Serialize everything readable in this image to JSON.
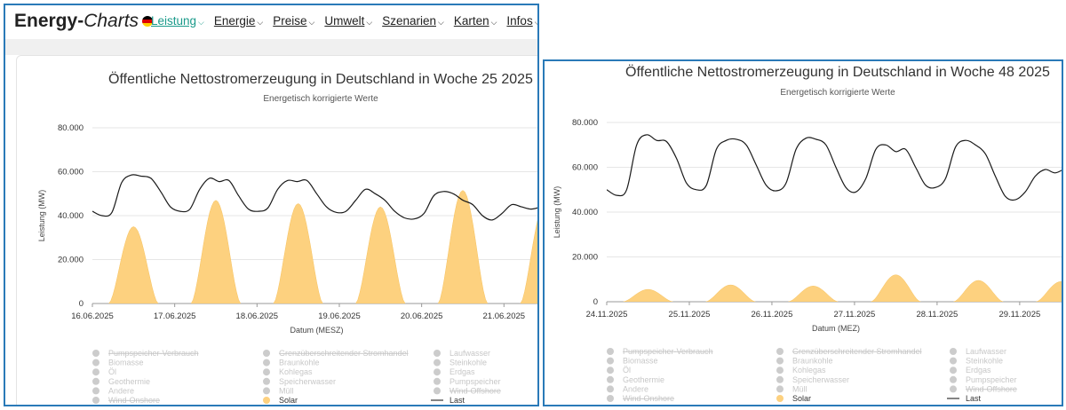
{
  "navbar": {
    "logo_main": "Energy-",
    "logo_italic": "Charts",
    "items": [
      "Leistung",
      "Energie",
      "Preise",
      "Umwelt",
      "Szenarien",
      "Karten",
      "Infos"
    ]
  },
  "legend": [
    {
      "label": "Pumpspeicher-Verbrauch",
      "struck": true,
      "active": false
    },
    {
      "label": "Grenzüberschreitender Stromhandel",
      "struck": true,
      "active": false
    },
    {
      "label": "Laufwasser",
      "struck": false,
      "active": false
    },
    {
      "label": "Biomasse",
      "struck": false,
      "active": false
    },
    {
      "label": "Braunkohle",
      "struck": false,
      "active": false
    },
    {
      "label": "Steinkohle",
      "struck": false,
      "active": false
    },
    {
      "label": "Öl",
      "struck": false,
      "active": false
    },
    {
      "label": "Kohlegas",
      "struck": false,
      "active": false
    },
    {
      "label": "Erdgas",
      "struck": false,
      "active": false
    },
    {
      "label": "Geothermie",
      "struck": false,
      "active": false
    },
    {
      "label": "Speicherwasser",
      "struck": false,
      "active": false
    },
    {
      "label": "Pumpspeicher",
      "struck": false,
      "active": false
    },
    {
      "label": "Andere",
      "struck": false,
      "active": false
    },
    {
      "label": "Müll",
      "struck": false,
      "active": false
    },
    {
      "label": "Wind-Offshore",
      "struck": true,
      "active": false
    },
    {
      "label": "Wind-Onshore",
      "struck": true,
      "active": false
    },
    {
      "label": "Solar",
      "struck": false,
      "active": true,
      "marker": "dot"
    },
    {
      "label": "Last",
      "struck": false,
      "active": true,
      "marker": "line"
    }
  ],
  "colors": {
    "solar": "#fdd17f",
    "load": "#1a1a1a",
    "inactive": "#cccccc",
    "accent": "#1a9a8a"
  },
  "chart_data": [
    {
      "type": "area",
      "title": "Öffentliche Nettostromerzeugung in Deutschland in Woche 25 2025",
      "subtitle": "Energetisch korrigierte Werte",
      "xlabel": "Datum (MESZ)",
      "ylabel": "Leistung (MW)",
      "ylim": [
        0,
        80000
      ],
      "yticks": [
        "0",
        "20.000",
        "40.000",
        "60.000",
        "80.000"
      ],
      "xticks": [
        "16.06.2025",
        "17.06.2025",
        "18.06.2025",
        "19.06.2025",
        "20.06.2025",
        "21.06.2025"
      ],
      "days_visible": 5.45,
      "series": [
        {
          "name": "Last",
          "type": "line",
          "values": [
            42000,
            40000,
            41500,
            55000,
            58500,
            58000,
            57000,
            51000,
            44000,
            42000,
            43000,
            52000,
            57000,
            55500,
            56000,
            49000,
            43000,
            42000,
            43500,
            52000,
            56000,
            55500,
            56000,
            50000,
            44000,
            41500,
            42000,
            47000,
            52000,
            50000,
            47000,
            42000,
            39000,
            38500,
            41000,
            49000,
            51000,
            50000,
            47000,
            45000,
            40000,
            38000,
            41000,
            45000,
            44000,
            43000,
            44000
          ]
        },
        {
          "name": "Solar",
          "type": "area",
          "days": [
            {
              "peak": 35000
            },
            {
              "peak": 47000
            },
            {
              "peak": 45500
            },
            {
              "peak": 44000
            },
            {
              "peak": 51500
            },
            {
              "peak": 46000
            }
          ]
        }
      ]
    },
    {
      "type": "area",
      "title": "Öffentliche Nettostromerzeugung in Deutschland in Woche 48 2025",
      "subtitle": "Energetisch korrigierte Werte",
      "xlabel": "Datum (MEZ)",
      "ylabel": "Leistung (MW)",
      "ylim": [
        0,
        80000
      ],
      "yticks": [
        "0",
        "20.000",
        "40.000",
        "60.000",
        "80.000"
      ],
      "xticks": [
        "24.11.2025",
        "25.11.2025",
        "26.11.2025",
        "27.11.2025",
        "28.11.2025",
        "29.11.2025"
      ],
      "days_visible": 5.55,
      "series": [
        {
          "name": "Last",
          "type": "line",
          "values": [
            50000,
            47500,
            50000,
            70000,
            74500,
            72000,
            71500,
            64000,
            53000,
            50000,
            52000,
            68000,
            72000,
            72500,
            70000,
            61000,
            52000,
            49500,
            53000,
            68000,
            73000,
            72500,
            70000,
            60000,
            51000,
            49000,
            55000,
            68000,
            70000,
            67000,
            68000,
            60000,
            52000,
            51000,
            55000,
            69000,
            72000,
            70000,
            66000,
            56000,
            47000,
            45500,
            49000,
            56000,
            59000,
            57500,
            59500
          ]
        },
        {
          "name": "Solar",
          "type": "area",
          "days": [
            {
              "peak": 5500
            },
            {
              "peak": 7500
            },
            {
              "peak": 7000
            },
            {
              "peak": 12000
            },
            {
              "peak": 9500
            },
            {
              "peak": 9000
            }
          ]
        }
      ]
    }
  ]
}
